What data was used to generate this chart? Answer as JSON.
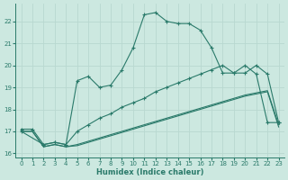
{
  "xlabel": "Humidex (Indice chaleur)",
  "ylabel": "",
  "bg_color": "#cce8e0",
  "grid_color": "#b8d8d0",
  "line_color": "#2a7a6a",
  "xlim": [
    -0.5,
    23.5
  ],
  "ylim": [
    15.8,
    22.8
  ],
  "xticks": [
    0,
    1,
    2,
    3,
    4,
    5,
    6,
    7,
    8,
    9,
    10,
    11,
    12,
    13,
    14,
    15,
    16,
    17,
    18,
    19,
    20,
    21,
    22,
    23
  ],
  "yticks": [
    16,
    17,
    18,
    19,
    20,
    21,
    22
  ],
  "line1_x": [
    0,
    1,
    2,
    3,
    4,
    5,
    6,
    7,
    8,
    9,
    10,
    11,
    12,
    13,
    14,
    15,
    16,
    17,
    18,
    19,
    20,
    21,
    22,
    23
  ],
  "line1_y": [
    17.1,
    17.1,
    16.4,
    16.5,
    16.4,
    19.3,
    19.5,
    19.0,
    19.1,
    19.8,
    20.8,
    22.3,
    22.4,
    22.0,
    21.9,
    21.9,
    21.6,
    20.8,
    19.65,
    19.65,
    20.0,
    19.6,
    17.4,
    17.4
  ],
  "line2_x": [
    0,
    2,
    3,
    4,
    5,
    6,
    7,
    8,
    9,
    10,
    11,
    12,
    13,
    14,
    15,
    16,
    17,
    18,
    19,
    20,
    21,
    22,
    23
  ],
  "line2_y": [
    17.0,
    16.4,
    16.5,
    16.4,
    17.0,
    17.3,
    17.6,
    17.8,
    18.1,
    18.3,
    18.5,
    18.8,
    19.0,
    19.2,
    19.4,
    19.6,
    19.8,
    20.0,
    19.65,
    19.65,
    20.0,
    19.6,
    17.4
  ],
  "line3_x": [
    0,
    1,
    2,
    3,
    4,
    5,
    6,
    7,
    8,
    9,
    10,
    11,
    12,
    13,
    14,
    15,
    16,
    17,
    18,
    19,
    20,
    21,
    22,
    23
  ],
  "line3_y": [
    17.0,
    17.0,
    16.3,
    16.4,
    16.3,
    16.4,
    16.55,
    16.7,
    16.85,
    17.0,
    17.15,
    17.3,
    17.45,
    17.6,
    17.75,
    17.9,
    18.05,
    18.2,
    18.35,
    18.5,
    18.65,
    18.75,
    18.85,
    17.3
  ],
  "line4_x": [
    0,
    1,
    2,
    3,
    4,
    5,
    6,
    7,
    8,
    9,
    10,
    11,
    12,
    13,
    14,
    15,
    16,
    17,
    18,
    19,
    20,
    21,
    22,
    23
  ],
  "line4_y": [
    17.0,
    17.0,
    16.3,
    16.4,
    16.3,
    16.35,
    16.5,
    16.65,
    16.8,
    16.95,
    17.1,
    17.25,
    17.4,
    17.55,
    17.7,
    17.85,
    18.0,
    18.15,
    18.3,
    18.45,
    18.6,
    18.7,
    18.8,
    17.2
  ]
}
